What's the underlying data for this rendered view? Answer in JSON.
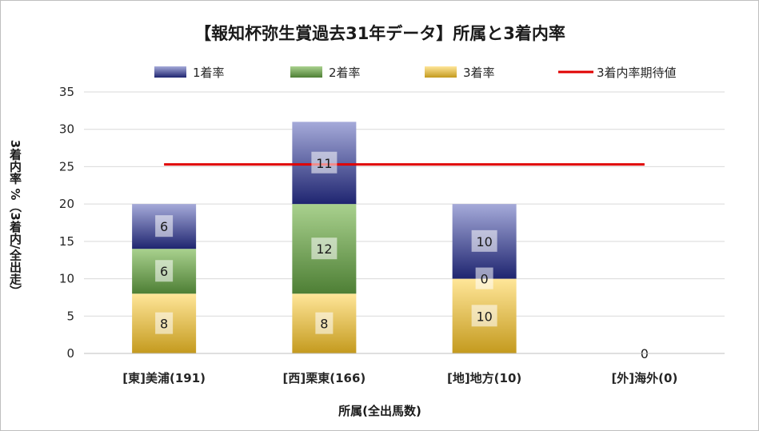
{
  "chart_data": {
    "type": "bar",
    "stacked": true,
    "title": "【報知杯弥生賞過去31年データ】所属と3着内率",
    "xlabel": "所属(全出馬数)",
    "ylabel": "3着内率 %（3着内/全出走）",
    "ylim": [
      0,
      35
    ],
    "y_ticks": [
      "0",
      "5",
      "10",
      "15",
      "20",
      "25",
      "30",
      "35"
    ],
    "grid": true,
    "legend_position": "top",
    "categories": [
      "[東]美浦(191)",
      "[西]栗東(166)",
      "[地]地方(10)",
      "[外]海外(0)"
    ],
    "series": [
      {
        "name": "3着率",
        "values": [
          8,
          8,
          10,
          0
        ],
        "labels": [
          "8",
          "8",
          "10",
          "0"
        ],
        "color_top": "#ffe699",
        "color_bottom": "#c49a1e"
      },
      {
        "name": "2着率",
        "values": [
          6,
          12,
          0,
          0
        ],
        "labels": [
          "6",
          "12",
          "0",
          ""
        ],
        "color_top": "#a9d18e",
        "color_bottom": "#4e7f35"
      },
      {
        "name": "1着率",
        "values": [
          6,
          11,
          10,
          0
        ],
        "labels": [
          "6",
          "11",
          "10",
          ""
        ],
        "color_top": "#a5aad9",
        "color_bottom": "#1f2570"
      }
    ],
    "legend_order": [
      "1着率",
      "2着率",
      "3着率",
      "3着内率期待値"
    ],
    "expected_line": {
      "name": "3着内率期待値",
      "value": 25.3,
      "color": "#e00000"
    }
  }
}
